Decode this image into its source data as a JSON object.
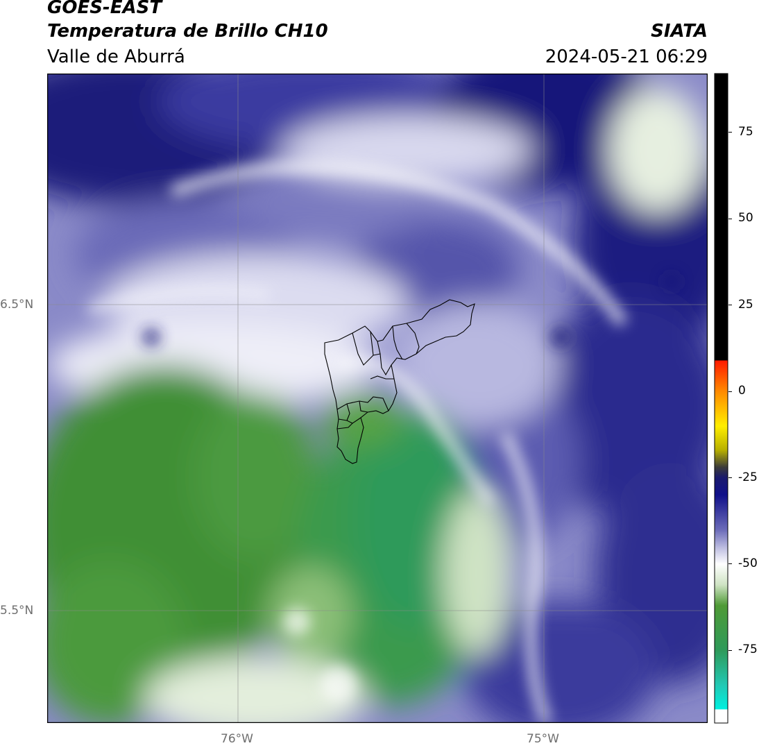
{
  "header": {
    "satellite": "GOES-EAST",
    "product": "Temperatura de Brillo CH10",
    "region": "Valle de Aburrá",
    "agency": "SIATA",
    "datetime": "2024-05-21 06:29"
  },
  "axes": {
    "lat_labels": [
      "6.5°N",
      "5.5°N"
    ],
    "lon_labels": [
      "76°W",
      "75°W"
    ]
  },
  "colorbar": {
    "ticks": [
      "75",
      "50",
      "25",
      "0",
      "-25",
      "-50",
      "-75"
    ],
    "tick_values": [
      75,
      50,
      25,
      0,
      -25,
      -50,
      -75
    ],
    "range": [
      -96,
      92
    ],
    "stops": [
      {
        "value": 92,
        "color": "#000000"
      },
      {
        "value": 9,
        "color": "#000000"
      },
      {
        "value": 8.9,
        "color": "#ff1a00"
      },
      {
        "value": 0,
        "color": "#ff8a00"
      },
      {
        "value": -10,
        "color": "#ffee00"
      },
      {
        "value": -17,
        "color": "#b8b000"
      },
      {
        "value": -22,
        "color": "#3a3a3a"
      },
      {
        "value": -25,
        "color": "#1a1a6e"
      },
      {
        "value": -30,
        "color": "#10108a"
      },
      {
        "value": -40,
        "color": "#6a6ab8"
      },
      {
        "value": -46,
        "color": "#c8c8e6"
      },
      {
        "value": -50,
        "color": "#ffffff"
      },
      {
        "value": -56,
        "color": "#cfe3c4"
      },
      {
        "value": -62,
        "color": "#4f9a36"
      },
      {
        "value": -75,
        "color": "#2e9a5a"
      },
      {
        "value": -85,
        "color": "#22c8b4"
      },
      {
        "value": -92,
        "color": "#00f0e0"
      },
      {
        "value": -92.1,
        "color": "#ffffff"
      },
      {
        "value": -96,
        "color": "#ffffff"
      }
    ]
  },
  "map": {
    "lat_range": [
      5.14,
      6.76
    ],
    "lon_range": [
      76.62,
      74.47
    ],
    "gridlines": {
      "lat": [
        6.5,
        5.5
      ],
      "lon": [
        76,
        75
      ]
    }
  }
}
